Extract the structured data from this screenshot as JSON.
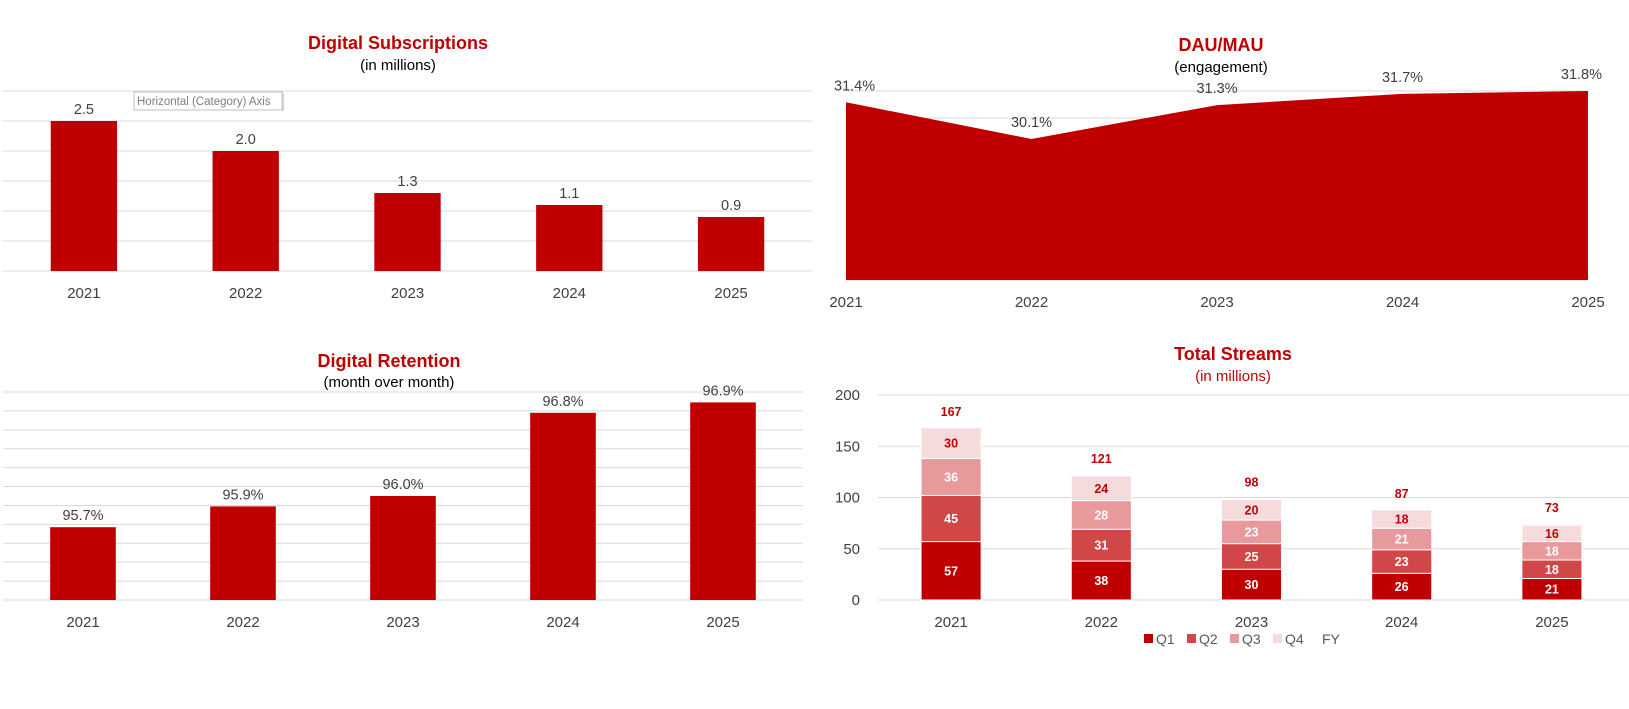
{
  "colors": {
    "accent": "#c00000",
    "q1": "#c00000",
    "q2": "#d14646",
    "q3": "#e8999b",
    "q4": "#f6dbdc",
    "label_dark": "#c00000",
    "label_light": "#ffffff"
  },
  "tooltip": "Horizontal (Category) Axis",
  "chart_data": [
    {
      "id": "subs",
      "type": "bar",
      "title": "Digital Subscriptions",
      "subtitle": "(in millions)",
      "categories": [
        "2021",
        "2022",
        "2023",
        "2024",
        "2025"
      ],
      "values": [
        2.5,
        2.0,
        1.3,
        1.1,
        0.9
      ],
      "value_labels": [
        "2.5",
        "2.0",
        "1.3",
        "1.1",
        "0.9"
      ],
      "ylim": [
        0,
        3
      ],
      "grid": true
    },
    {
      "id": "dau",
      "type": "area",
      "title": "DAU/MAU",
      "subtitle": "(engagement)",
      "categories": [
        "2021",
        "2022",
        "2023",
        "2024",
        "2025"
      ],
      "values": [
        31.4,
        30.1,
        31.3,
        31.7,
        31.8
      ],
      "value_labels": [
        "31.4%",
        "30.1%",
        "31.3%",
        "31.7%",
        "31.8%"
      ],
      "ylim": [
        25.1,
        31.8
      ],
      "grid": true
    },
    {
      "id": "ret",
      "type": "bar",
      "title": "Digital Retention",
      "subtitle": "(month over month)",
      "categories": [
        "2021",
        "2022",
        "2023",
        "2024",
        "2025"
      ],
      "values": [
        95.7,
        95.9,
        96.0,
        96.8,
        96.9
      ],
      "value_labels": [
        "95.7%",
        "95.9%",
        "96.0%",
        "96.8%",
        "96.9%"
      ],
      "ylim": [
        95.0,
        97.0
      ],
      "grid": true
    },
    {
      "id": "streams",
      "type": "bar",
      "stacked": true,
      "title": "Total Streams",
      "subtitle": "(in millions)",
      "categories": [
        "2021",
        "2022",
        "2023",
        "2024",
        "2025"
      ],
      "yticks": [
        "0",
        "50",
        "100",
        "150",
        "200"
      ],
      "ylim": [
        0,
        200
      ],
      "grid": true,
      "series": [
        {
          "name": "Q1",
          "values": [
            57,
            38,
            30,
            26,
            21
          ]
        },
        {
          "name": "Q2",
          "values": [
            45,
            31,
            25,
            23,
            18
          ]
        },
        {
          "name": "Q3",
          "values": [
            36,
            28,
            23,
            21,
            18
          ]
        },
        {
          "name": "Q4",
          "values": [
            30,
            24,
            20,
            18,
            16
          ]
        }
      ],
      "totals_name": "FY",
      "totals": [
        167,
        121,
        98,
        87,
        73
      ],
      "legend": [
        "Q1",
        "Q2",
        "Q3",
        "Q4",
        "FY"
      ],
      "legend_position": "bottom"
    }
  ]
}
